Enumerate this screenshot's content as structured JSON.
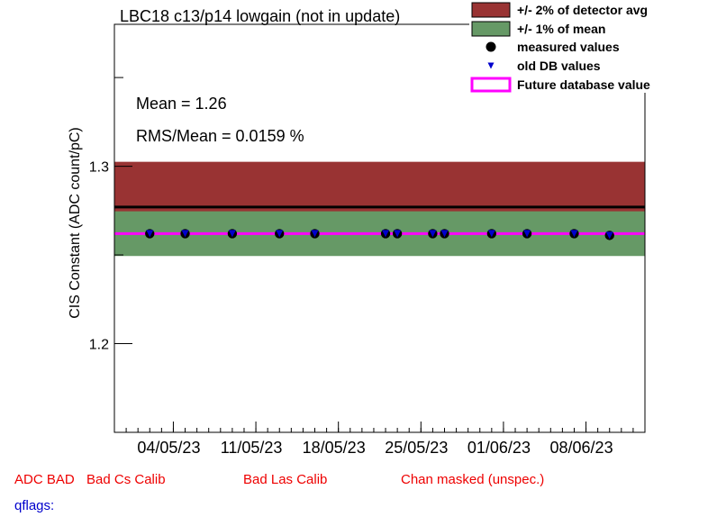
{
  "chart_data": {
    "type": "scatter",
    "title": "LBC18 c13/p14 lowgain (not in update)",
    "ylabel": "CIS Constant (ADC count/pC)",
    "xlabel": "",
    "ylim": [
      1.15,
      1.38
    ],
    "y_ticks": [
      {
        "value": 1.2,
        "label": "1.2"
      },
      {
        "value": 1.3,
        "label": "1.3"
      }
    ],
    "x_date_range": [
      "2023-04-29",
      "2023-06-13"
    ],
    "x_ticks": [
      {
        "date": "2023-05-04",
        "label": "04/05/23"
      },
      {
        "date": "2023-05-11",
        "label": "11/05/23"
      },
      {
        "date": "2023-05-18",
        "label": "18/05/23"
      },
      {
        "date": "2023-05-25",
        "label": "25/05/23"
      },
      {
        "date": "2023-06-01",
        "label": "01/06/23"
      },
      {
        "date": "2023-06-08",
        "label": "08/06/23"
      }
    ],
    "detector_avg": 1.277,
    "band_2pct": [
      1.2515,
      1.3025
    ],
    "mean": 1.262,
    "band_1pct": [
      1.2494,
      1.2746
    ],
    "future_db_value": 1.262,
    "series": [
      {
        "name": "measured values",
        "color": "#000000",
        "points": [
          {
            "x": "2023-05-02",
            "y": 1.262
          },
          {
            "x": "2023-05-05",
            "y": 1.262
          },
          {
            "x": "2023-05-09",
            "y": 1.262
          },
          {
            "x": "2023-05-13",
            "y": 1.262
          },
          {
            "x": "2023-05-16",
            "y": 1.262
          },
          {
            "x": "2023-05-22",
            "y": 1.262
          },
          {
            "x": "2023-05-23",
            "y": 1.262
          },
          {
            "x": "2023-05-26",
            "y": 1.262
          },
          {
            "x": "2023-05-27",
            "y": 1.262
          },
          {
            "x": "2023-05-31",
            "y": 1.262
          },
          {
            "x": "2023-06-03",
            "y": 1.262
          },
          {
            "x": "2023-06-07",
            "y": 1.262
          },
          {
            "x": "2023-06-10",
            "y": 1.261
          }
        ]
      },
      {
        "name": "old DB values",
        "color": "#0000cc",
        "points": [
          {
            "x": "2023-05-02",
            "y": 1.262
          },
          {
            "x": "2023-05-05",
            "y": 1.262
          },
          {
            "x": "2023-05-09",
            "y": 1.262
          },
          {
            "x": "2023-05-13",
            "y": 1.262
          },
          {
            "x": "2023-05-16",
            "y": 1.262
          },
          {
            "x": "2023-05-22",
            "y": 1.262
          },
          {
            "x": "2023-05-23",
            "y": 1.262
          },
          {
            "x": "2023-05-26",
            "y": 1.262
          },
          {
            "x": "2023-05-27",
            "y": 1.262
          },
          {
            "x": "2023-05-31",
            "y": 1.262
          },
          {
            "x": "2023-06-03",
            "y": 1.262
          },
          {
            "x": "2023-06-07",
            "y": 1.262
          },
          {
            "x": "2023-06-10",
            "y": 1.261
          }
        ]
      }
    ],
    "legend": {
      "placement": "top-right",
      "entries": [
        {
          "label": "+/- 2% of detector avg",
          "symbol": "box",
          "color": "#993333"
        },
        {
          "label": "+/- 1% of mean",
          "symbol": "box",
          "color": "#669966"
        },
        {
          "label": "measured values",
          "symbol": "circle",
          "color": "#000000"
        },
        {
          "label": "old DB values",
          "symbol": "triangle",
          "color": "#0000cc"
        },
        {
          "label": "Future database value",
          "symbol": "outline",
          "color": "#ff00ff"
        }
      ]
    },
    "annotations": {
      "mean_text": "Mean = 1.26",
      "rms_text": "RMS/Mean = 0.0159 %"
    },
    "colors": {
      "band_2pct": "#993333",
      "band_1pct": "#669966",
      "future_line": "#ff00ff",
      "avg_line": "#000000"
    }
  },
  "flags": {
    "adc_bad": "ADC BAD",
    "bad_cs": "Bad Cs Calib",
    "bad_las": "Bad Las Calib",
    "chan_masked": "Chan masked (unspec.)",
    "qflags": "qflags:"
  }
}
